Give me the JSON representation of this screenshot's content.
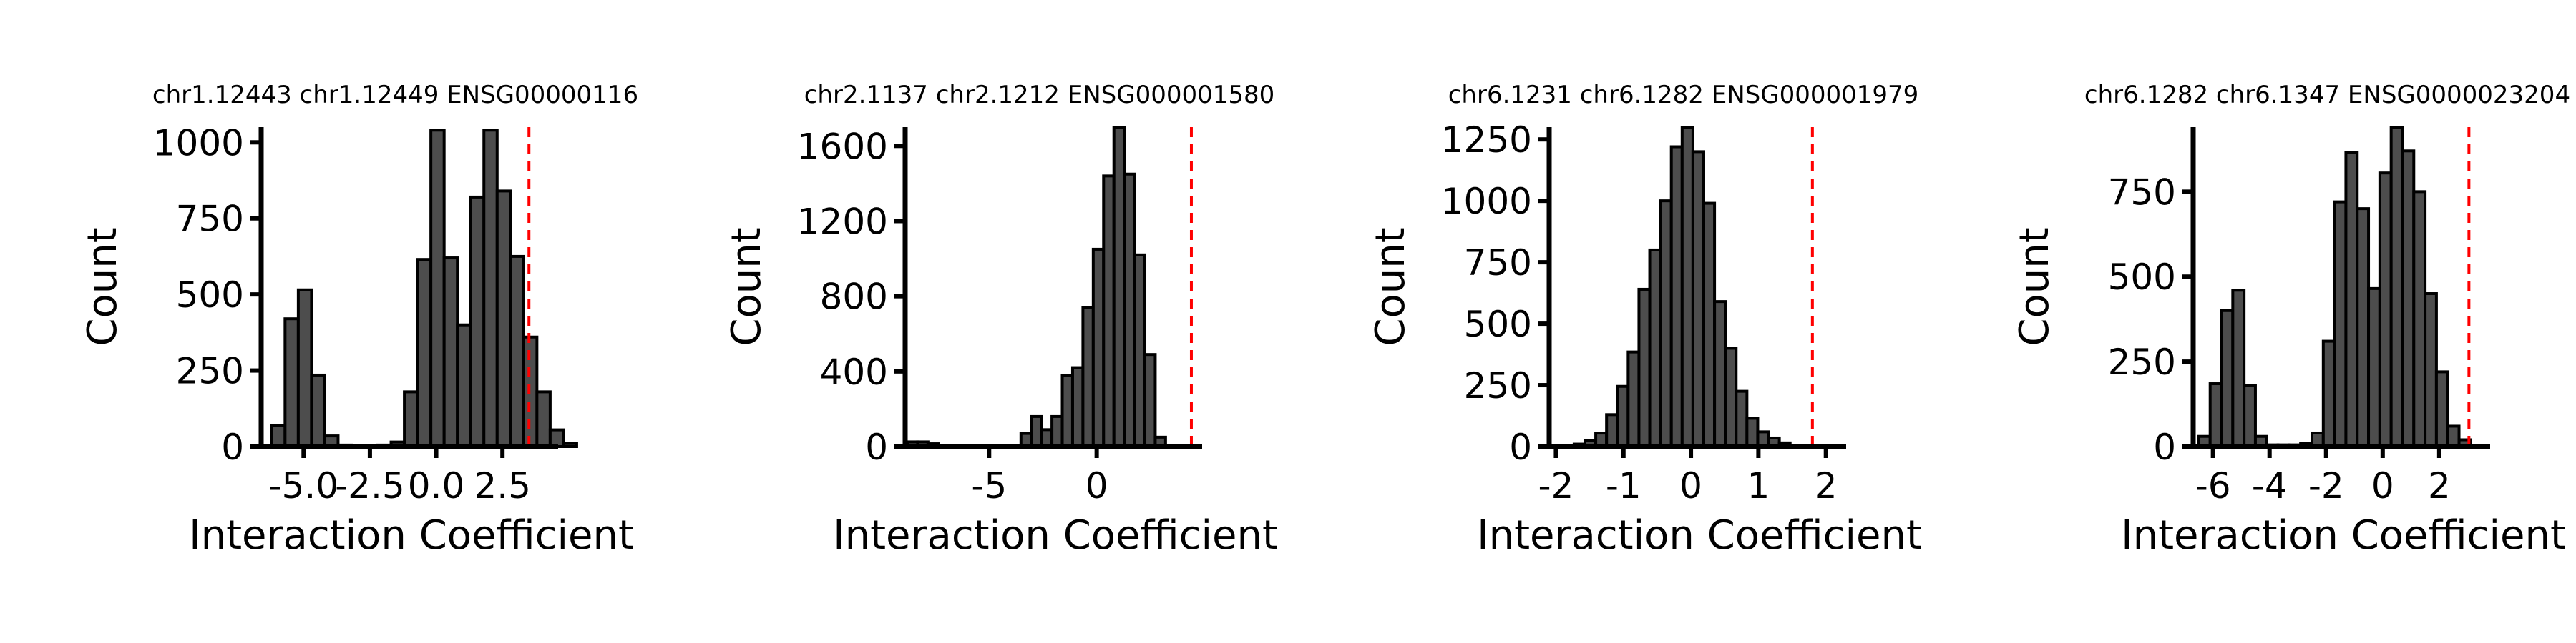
{
  "chart_data": [
    {
      "type": "bar",
      "title": "chr1.12443 chr1.12449 ENSG00000116",
      "xlabel": "Interaction Coefficient",
      "ylabel": "Count",
      "xlim": [
        -6.6,
        4.6
      ],
      "ylim": [
        0,
        1050
      ],
      "xticks": [
        -5.0,
        -2.5,
        0.0,
        2.5
      ],
      "xtick_labels": [
        "-5.0",
        "-2.5",
        "0.0",
        "2.5"
      ],
      "yticks": [
        0,
        250,
        500,
        750,
        1000
      ],
      "ytick_labels": [
        "0",
        "250",
        "500",
        "750",
        "1000"
      ],
      "bin_width": 0.5,
      "bin_start": -6.2,
      "values": [
        70,
        420,
        515,
        235,
        35,
        5,
        2,
        2,
        5,
        15,
        180,
        615,
        1040,
        620,
        400,
        820,
        1040,
        840,
        625,
        360,
        180,
        55,
        10
      ],
      "reference_line": 3.5,
      "grid": false
    },
    {
      "type": "bar",
      "title": "chr2.1137 chr2.1212 ENSG000001580",
      "xlabel": "Interaction Coefficient",
      "ylabel": "Count",
      "xlim": [
        -8.9,
        4.9
      ],
      "ylim": [
        0,
        1700
      ],
      "xticks": [
        -5,
        0
      ],
      "xtick_labels": [
        "-5",
        "0"
      ],
      "yticks": [
        0,
        400,
        800,
        1200,
        1600
      ],
      "ytick_labels": [
        "0",
        "400",
        "800",
        "1200",
        "1600"
      ],
      "bin_width": 0.48,
      "bin_start": -8.8,
      "values": [
        25,
        25,
        15,
        2,
        2,
        2,
        2,
        2,
        2,
        5,
        2,
        70,
        160,
        90,
        160,
        380,
        420,
        740,
        1050,
        1440,
        1700,
        1450,
        1020,
        490,
        50
      ],
      "reference_line": 4.4,
      "grid": false
    },
    {
      "type": "bar",
      "title": "chr6.1231 chr6.1282 ENSG000001979",
      "xlabel": "Interaction Coefficient",
      "ylabel": "Count",
      "xlim": [
        -2.1,
        2.3
      ],
      "ylim": [
        0,
        1300
      ],
      "xticks": [
        -2,
        -1,
        0,
        1,
        2
      ],
      "xtick_labels": [
        "-2",
        "-1",
        "0",
        "1",
        "2"
      ],
      "yticks": [
        0,
        250,
        500,
        750,
        1000,
        1250
      ],
      "ytick_labels": [
        "0",
        "250",
        "500",
        "750",
        "1000",
        "1250"
      ],
      "bin_width": 0.16,
      "bin_start": -2.05,
      "values": [
        5,
        5,
        10,
        25,
        55,
        130,
        245,
        385,
        640,
        800,
        1000,
        1220,
        1300,
        1200,
        990,
        590,
        400,
        225,
        115,
        60,
        35,
        15,
        5
      ],
      "reference_line": 1.8,
      "grid": false
    },
    {
      "type": "bar",
      "title": "chr6.1282 chr6.1347 ENSG0000023204",
      "xlabel": "Interaction Coefficient",
      "ylabel": "Count",
      "xlim": [
        -6.7,
        3.8
      ],
      "ylim": [
        0,
        940
      ],
      "xticks": [
        -6,
        -4,
        -2,
        0,
        2
      ],
      "xtick_labels": [
        "-6",
        "-4",
        "-2",
        "0",
        "2"
      ],
      "yticks": [
        0,
        250,
        500,
        750
      ],
      "ytick_labels": [
        "0",
        "250",
        "500",
        "750"
      ],
      "bin_width": 0.4,
      "bin_start": -6.5,
      "values": [
        30,
        185,
        400,
        460,
        180,
        30,
        5,
        5,
        5,
        10,
        40,
        310,
        720,
        865,
        700,
        465,
        805,
        940,
        870,
        750,
        450,
        220,
        60,
        20
      ],
      "reference_line": 3.05,
      "grid": false
    }
  ]
}
